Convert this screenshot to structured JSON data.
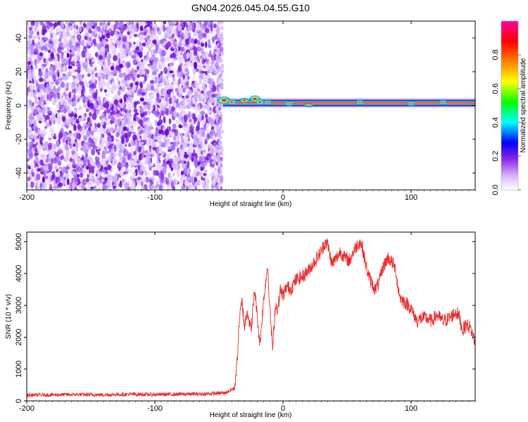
{
  "title": "GN04.2026.045.04.55.G10",
  "chart_data": [
    {
      "type": "heatmap",
      "xlabel": "Height of straight line (km)",
      "ylabel": "Frequency (Hz)",
      "xlim": [
        -200,
        150
      ],
      "ylim": [
        -50,
        50
      ],
      "xticks": [
        -200,
        -100,
        0,
        100
      ],
      "yticks": [
        -40,
        -20,
        0,
        20,
        40
      ],
      "noise_region_x": [
        -200,
        -48
      ],
      "signal_region_x": [
        -48,
        150
      ],
      "signal_frequency_hz": 1.5,
      "colorbar": {
        "label": "Normalized spectral amplitude",
        "range": [
          0,
          1
        ],
        "ticks": [
          "0.0",
          "0.2",
          "0.4",
          "0.6",
          "0.8"
        ],
        "colormap": [
          "#ffffff",
          "#8a2be2",
          "#0000ff",
          "#00ffff",
          "#00ff00",
          "#ffff00",
          "#ff8000",
          "#ff0000",
          "#ff00a0"
        ]
      }
    },
    {
      "type": "line",
      "xlabel": "Height of straight line (km)",
      "ylabel": "SNR (10 * v/v)",
      "xlim": [
        -200,
        150
      ],
      "ylim": [
        0,
        5300
      ],
      "xticks": [
        -200,
        -100,
        0,
        100
      ],
      "yticks": [
        0,
        1000,
        2000,
        3000,
        4000,
        5000
      ],
      "series": [
        {
          "color": "#e82c2c",
          "x": [
            -200,
            -180,
            -160,
            -140,
            -120,
            -100,
            -80,
            -60,
            -45,
            -38,
            -36,
            -34,
            -32,
            -30,
            -28,
            -25,
            -22,
            -20,
            -18,
            -15,
            -12,
            -10,
            -8,
            -6,
            -4,
            -2,
            0,
            3,
            6,
            10,
            15,
            20,
            25,
            30,
            33,
            35,
            38,
            42,
            45,
            48,
            52,
            55,
            58,
            60,
            62,
            65,
            68,
            72,
            75,
            78,
            82,
            86,
            88,
            90,
            92,
            95,
            98,
            100,
            102,
            105,
            108,
            112,
            116,
            120,
            125,
            130,
            135,
            138,
            140,
            143,
            146,
            148,
            150
          ],
          "y": [
            180,
            190,
            200,
            190,
            210,
            200,
            210,
            220,
            250,
            400,
            1100,
            2600,
            3100,
            2300,
            2900,
            2200,
            3500,
            2600,
            1800,
            3200,
            4300,
            2700,
            1600,
            3000,
            2900,
            3500,
            3300,
            3600,
            3500,
            3800,
            3900,
            4100,
            4400,
            4700,
            5000,
            4900,
            4300,
            4500,
            4700,
            4500,
            4400,
            4700,
            4900,
            5000,
            4800,
            4200,
            3800,
            3500,
            3700,
            4200,
            4500,
            4300,
            4100,
            3500,
            3200,
            3100,
            3000,
            2900,
            2700,
            2500,
            2600,
            2600,
            2500,
            2700,
            2500,
            2600,
            2800,
            2600,
            2200,
            2400,
            2300,
            2100,
            1800
          ]
        }
      ]
    }
  ]
}
